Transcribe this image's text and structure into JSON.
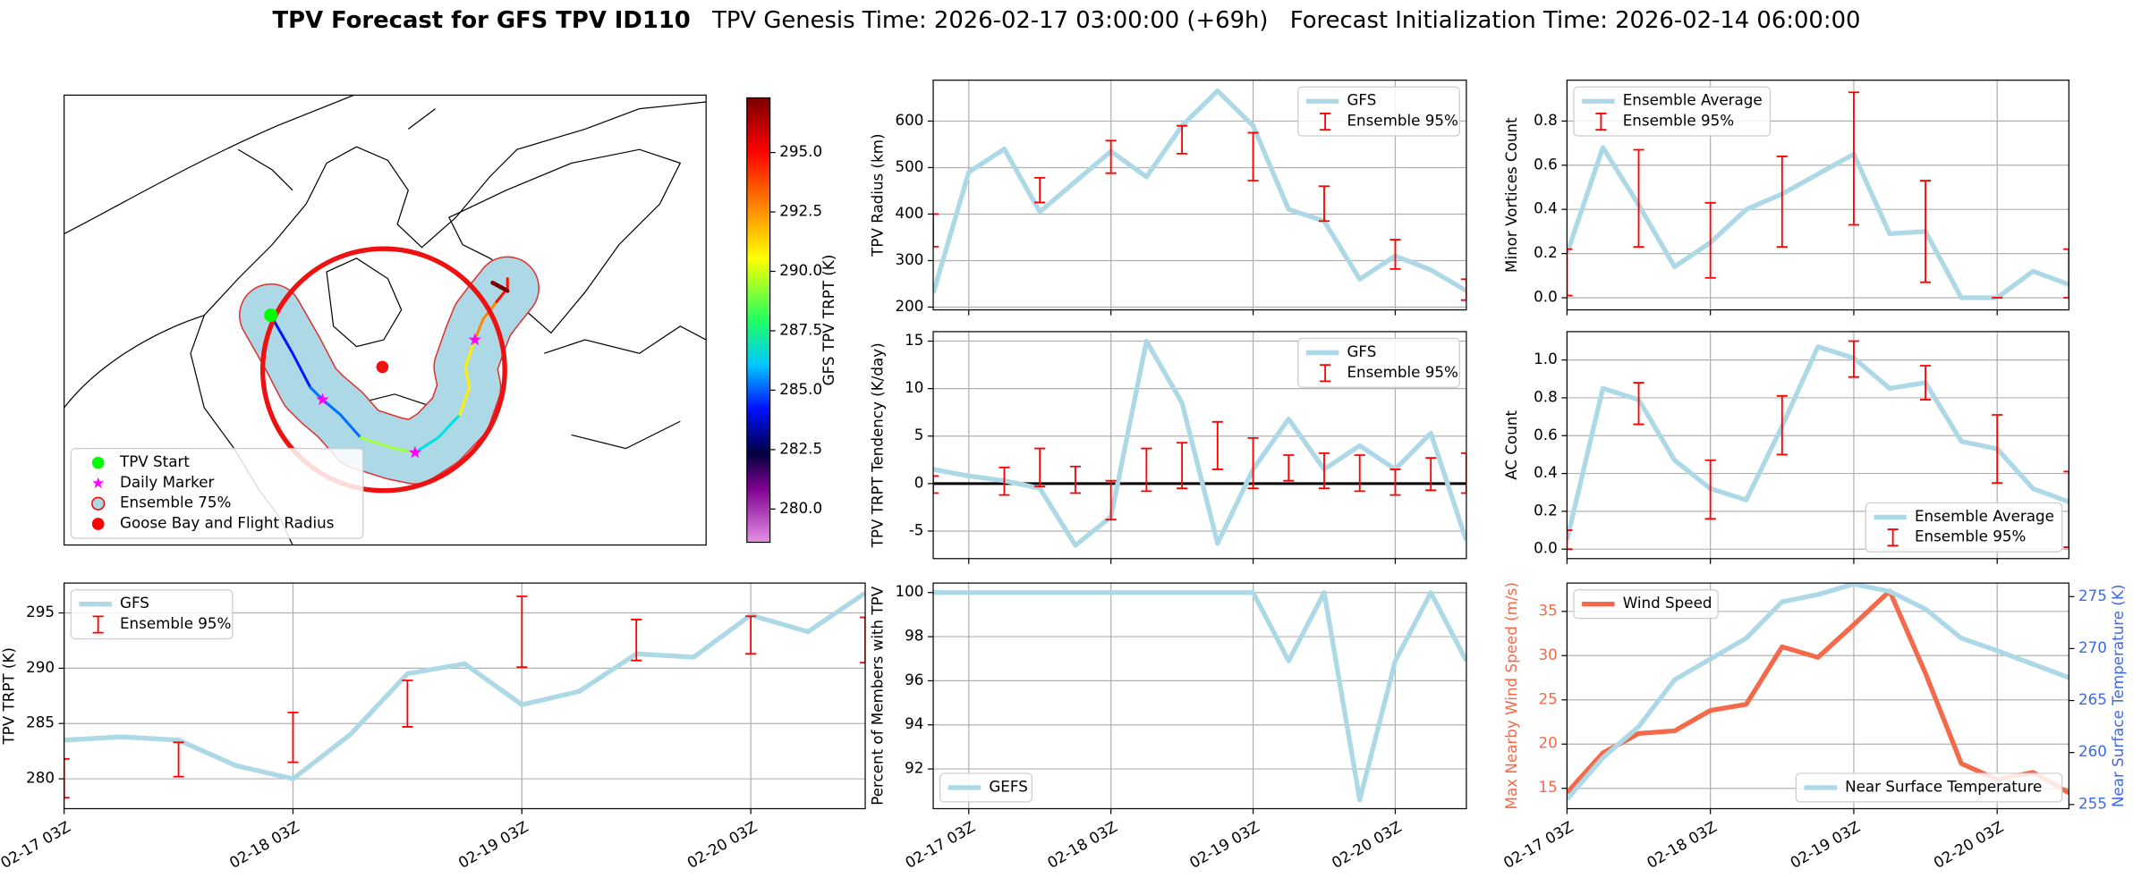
{
  "title": {
    "main": "TPV Forecast for GFS TPV ID110",
    "genesis": "TPV Genesis Time: 2026-02-17 03:00:00 (+69h)",
    "init": "Forecast Initialization Time: 2026-02-14 06:00:00"
  },
  "chart_data": [
    {
      "type": "map",
      "legend": "lower left",
      "legend_entries": [
        {
          "name": "TPV Start",
          "color": "#00ff00",
          "marker": "circle"
        },
        {
          "name": "Daily Marker",
          "color": "#ff00ff",
          "marker": "star"
        },
        {
          "name": "Ensemble 75%",
          "color": "#add8e6",
          "marker": "circle",
          "edgecolor": "#ff0000"
        },
        {
          "name": "Goose Bay and Flight Radius",
          "color": "#ff0000",
          "marker": "circle"
        }
      ],
      "colorbar": {
        "label": "GFS TPV TRPT (K)",
        "lim": [
          278.6,
          297.3
        ],
        "ticks": [
          {
            "value": 280,
            "label": "280.0"
          },
          {
            "value": 282.5,
            "label": "282.5"
          },
          {
            "value": 285,
            "label": "285.0"
          },
          {
            "value": 287.5,
            "label": "287.5"
          },
          {
            "value": 290,
            "label": "290.0"
          },
          {
            "value": 292.5,
            "label": "292.5"
          },
          {
            "value": 295,
            "label": "295.0"
          }
        ]
      }
    },
    {
      "type": "line",
      "ylabel": "TPV TRPT (K)",
      "grid": true,
      "legend": "upper left",
      "x": [
        "02-17 03Z",
        "02-17 09Z",
        "02-17 15Z",
        "02-17 21Z",
        "02-18 03Z",
        "02-18 09Z",
        "02-18 15Z",
        "02-18 21Z",
        "02-19 03Z",
        "02-19 09Z",
        "02-19 15Z",
        "02-19 21Z",
        "02-20 03Z",
        "02-20 09Z",
        "02-20 15Z"
      ],
      "xlim": [
        "02-17 03Z",
        "02-20 15Z"
      ],
      "xticks": [
        "02-17 03Z",
        "02-18 03Z",
        "02-19 03Z",
        "02-20 03Z"
      ],
      "ylim": [
        277.3,
        297.7
      ],
      "yticks": [
        280,
        285,
        290,
        295
      ],
      "series": [
        {
          "name": "GFS",
          "color": "#add8e6",
          "values": [
            283.5,
            283.8,
            283.5,
            281.2,
            280.0,
            284.0,
            289.5,
            290.4,
            286.7,
            287.9,
            291.3,
            291.0,
            294.8,
            293.3,
            296.8
          ]
        },
        {
          "name": "Ensemble 95%",
          "style": "errorbar",
          "color": "#ff0000",
          "x": [
            "02-17 03Z",
            "02-17 15Z",
            "02-18 03Z",
            "02-18 15Z",
            "02-19 03Z",
            "02-19 15Z",
            "02-20 03Z",
            "02-20 15Z"
          ],
          "low": [
            278.3,
            280.2,
            281.5,
            284.7,
            290.1,
            290.7,
            291.3,
            290.5
          ],
          "high": [
            281.8,
            283.3,
            286.0,
            288.9,
            296.5,
            294.4,
            294.7,
            294.6
          ]
        }
      ]
    },
    {
      "type": "line",
      "ylabel": "TPV Radius (km)",
      "grid": true,
      "legend": "upper right",
      "xticklabels": false,
      "x": [
        "02-16 21Z",
        "02-17 03Z",
        "02-17 09Z",
        "02-17 15Z",
        "02-17 21Z",
        "02-18 03Z",
        "02-18 09Z",
        "02-18 15Z",
        "02-18 21Z",
        "02-19 03Z",
        "02-19 09Z",
        "02-19 15Z",
        "02-19 21Z",
        "02-20 03Z",
        "02-20 09Z",
        "02-20 15Z"
      ],
      "xlim": [
        "02-16 21Z",
        "02-20 15Z"
      ],
      "xticks": [
        "02-17 03Z",
        "02-18 03Z",
        "02-19 03Z",
        "02-20 03Z"
      ],
      "ylim": [
        194,
        688
      ],
      "yticks": [
        200,
        300,
        400,
        500,
        600
      ],
      "series": [
        {
          "name": "GFS",
          "color": "#add8e6",
          "values": [
            230,
            490,
            540,
            405,
            470,
            535,
            480,
            590,
            665,
            590,
            410,
            385,
            260,
            310,
            280,
            235
          ]
        },
        {
          "name": "Ensemble 95%",
          "style": "errorbar",
          "color": "#ff0000",
          "x": [
            "02-16 21Z",
            "02-17 15Z",
            "02-18 03Z",
            "02-18 15Z",
            "02-19 03Z",
            "02-19 15Z",
            "02-20 03Z",
            "02-20 15Z"
          ],
          "low": [
            330,
            425,
            488,
            530,
            472,
            385,
            282,
            215
          ],
          "high": [
            400,
            478,
            558,
            590,
            575,
            460,
            345,
            260
          ]
        }
      ]
    },
    {
      "type": "line",
      "ylabel": "TPV TRPT Tendency (K/day)",
      "grid": true,
      "legend": "upper right",
      "xticklabels": false,
      "hline": 0,
      "x": [
        "02-16 21Z",
        "02-17 03Z",
        "02-17 09Z",
        "02-17 15Z",
        "02-17 21Z",
        "02-18 03Z",
        "02-18 09Z",
        "02-18 15Z",
        "02-18 21Z",
        "02-19 03Z",
        "02-19 09Z",
        "02-19 15Z",
        "02-19 21Z",
        "02-20 03Z",
        "02-20 09Z",
        "02-20 15Z"
      ],
      "xlim": [
        "02-16 21Z",
        "02-20 15Z"
      ],
      "xticks": [
        "02-17 03Z",
        "02-18 03Z",
        "02-19 03Z",
        "02-20 03Z"
      ],
      "ylim": [
        -7.9,
        16
      ],
      "yticks": [
        -5,
        0,
        5,
        10,
        15
      ],
      "series": [
        {
          "name": "GFS",
          "color": "#add8e6",
          "values": [
            1.5,
            0.8,
            0.3,
            -0.5,
            -6.5,
            -3.5,
            15.0,
            8.5,
            -6.3,
            1.5,
            6.8,
            1.5,
            4.0,
            1.5,
            5.3,
            -6.0
          ]
        },
        {
          "name": "Ensemble 95%",
          "style": "errorbar",
          "color": "#ff0000",
          "x": [
            "02-16 21Z",
            "02-17 09Z",
            "02-17 15Z",
            "02-17 21Z",
            "02-18 03Z",
            "02-18 09Z",
            "02-18 15Z",
            "02-18 21Z",
            "02-19 03Z",
            "02-19 09Z",
            "02-19 15Z",
            "02-19 21Z",
            "02-20 03Z",
            "02-20 09Z",
            "02-20 15Z"
          ],
          "low": [
            -1.0,
            -1.2,
            -0.3,
            -1.0,
            -3.8,
            -0.8,
            -0.5,
            1.5,
            -0.5,
            0.3,
            -0.5,
            -0.8,
            -1.2,
            -0.7,
            -1.0
          ],
          "high": [
            0.8,
            1.7,
            3.7,
            1.8,
            0.3,
            3.7,
            4.3,
            6.5,
            4.8,
            3.0,
            3.2,
            3.0,
            1.5,
            2.7,
            3.2
          ]
        }
      ]
    },
    {
      "type": "line",
      "ylabel": "Percent of Members with TPV",
      "grid": true,
      "legend": "lower left",
      "x": [
        "02-16 21Z",
        "02-17 03Z",
        "02-17 09Z",
        "02-17 15Z",
        "02-17 21Z",
        "02-18 03Z",
        "02-18 09Z",
        "02-18 15Z",
        "02-18 21Z",
        "02-19 03Z",
        "02-19 09Z",
        "02-19 15Z",
        "02-19 21Z",
        "02-20 03Z",
        "02-20 09Z",
        "02-20 15Z"
      ],
      "xlim": [
        "02-16 21Z",
        "02-20 15Z"
      ],
      "xticks": [
        "02-17 03Z",
        "02-18 03Z",
        "02-19 03Z",
        "02-20 03Z"
      ],
      "ylim": [
        90.2,
        100.43
      ],
      "yticks": [
        92,
        94,
        96,
        98,
        100
      ],
      "series": [
        {
          "name": "GEFS",
          "color": "#add8e6",
          "values": [
            100,
            100,
            100,
            100,
            100,
            100,
            100,
            100,
            100,
            100,
            96.9,
            100,
            90.6,
            96.9,
            100,
            96.9
          ]
        }
      ]
    },
    {
      "type": "line",
      "ylabel": "Minor Vortices Count",
      "grid": true,
      "legend": "upper left",
      "xticklabels": false,
      "x": [
        "02-17 03Z",
        "02-17 09Z",
        "02-17 15Z",
        "02-17 21Z",
        "02-18 03Z",
        "02-18 09Z",
        "02-18 15Z",
        "02-18 21Z",
        "02-19 03Z",
        "02-19 09Z",
        "02-19 15Z",
        "02-19 21Z",
        "02-20 03Z",
        "02-20 09Z",
        "02-20 15Z"
      ],
      "xlim": [
        "02-17 03Z",
        "02-20 15Z"
      ],
      "xticks": [
        "02-17 03Z",
        "02-18 03Z",
        "02-19 03Z",
        "02-20 03Z"
      ],
      "ylim": [
        -0.055,
        0.985
      ],
      "yticks": [
        {
          "value": 0,
          "label": "0.0"
        },
        0.2,
        0.4,
        0.6,
        0.8
      ],
      "series": [
        {
          "name": "Ensemble Average",
          "color": "#add8e6",
          "values": [
            0.2,
            0.68,
            0.42,
            0.14,
            0.25,
            0.4,
            0.47,
            0.56,
            0.65,
            0.29,
            0.3,
            0.0,
            0.0,
            0.12,
            0.06
          ]
        },
        {
          "name": "Ensemble 95%",
          "style": "errorbar",
          "color": "#ff0000",
          "x": [
            "02-17 03Z",
            "02-17 15Z",
            "02-18 03Z",
            "02-18 15Z",
            "02-19 03Z",
            "02-19 15Z",
            "02-20 03Z",
            "02-20 15Z"
          ],
          "low": [
            0.01,
            0.23,
            0.09,
            0.23,
            0.33,
            0.07,
            0.0,
            0.0
          ],
          "high": [
            0.22,
            0.67,
            0.43,
            0.64,
            0.93,
            0.53,
            0.0,
            0.22
          ]
        }
      ]
    },
    {
      "type": "line",
      "ylabel": "AC Count",
      "grid": true,
      "legend": "lower right",
      "xticklabels": false,
      "x": [
        "02-17 03Z",
        "02-17 09Z",
        "02-17 15Z",
        "02-17 21Z",
        "02-18 03Z",
        "02-18 09Z",
        "02-18 15Z",
        "02-18 21Z",
        "02-19 03Z",
        "02-19 09Z",
        "02-19 15Z",
        "02-19 21Z",
        "02-20 03Z",
        "02-20 09Z",
        "02-20 15Z"
      ],
      "xlim": [
        "02-17 03Z",
        "02-20 15Z"
      ],
      "xticks": [
        "02-17 03Z",
        "02-18 03Z",
        "02-19 03Z",
        "02-20 03Z"
      ],
      "ylim": [
        -0.05,
        1.15
      ],
      "yticks": [
        {
          "value": 0,
          "label": "0.0"
        },
        0.2,
        0.4,
        0.6,
        0.8,
        {
          "value": 1,
          "label": "1.0"
        }
      ],
      "series": [
        {
          "name": "Ensemble Average",
          "color": "#add8e6",
          "values": [
            0.05,
            0.85,
            0.79,
            0.47,
            0.32,
            0.26,
            0.65,
            1.07,
            1.01,
            0.85,
            0.88,
            0.57,
            0.53,
            0.32,
            0.25
          ]
        },
        {
          "name": "Ensemble 95%",
          "style": "errorbar",
          "color": "#ff0000",
          "x": [
            "02-17 03Z",
            "02-17 15Z",
            "02-18 03Z",
            "02-18 15Z",
            "02-19 03Z",
            "02-19 15Z",
            "02-20 03Z",
            "02-20 15Z"
          ],
          "low": [
            0.0,
            0.66,
            0.16,
            0.5,
            0.91,
            0.79,
            0.35,
            0.01
          ],
          "high": [
            0.1,
            0.88,
            0.47,
            0.81,
            1.1,
            0.97,
            0.71,
            0.41
          ]
        }
      ]
    },
    {
      "type": "line",
      "ylabel": "Max Nearby Wind Speed (m/s)",
      "ylabel_color": "#f4694a",
      "y2label": "Near Surface Temperature (K)",
      "y2label_color": "#4169e1",
      "grid": true,
      "x": [
        "02-17 03Z",
        "02-17 09Z",
        "02-17 15Z",
        "02-17 21Z",
        "02-18 03Z",
        "02-18 09Z",
        "02-18 15Z",
        "02-18 21Z",
        "02-19 03Z",
        "02-19 09Z",
        "02-19 15Z",
        "02-19 21Z",
        "02-20 03Z",
        "02-20 09Z",
        "02-20 15Z"
      ],
      "xlim": [
        "02-17 03Z",
        "02-20 15Z"
      ],
      "xticks": [
        "02-17 03Z",
        "02-18 03Z",
        "02-19 03Z",
        "02-20 03Z"
      ],
      "ylim": [
        12.7,
        38.2
      ],
      "yticks": [
        15,
        20,
        25,
        30,
        35
      ],
      "y2lim": [
        254.6,
        276.3
      ],
      "y2ticks": [
        255,
        260,
        265,
        270,
        275
      ],
      "series": [
        {
          "name": "Wind Speed",
          "color": "#f4694a",
          "legend": "upper left",
          "values": [
            14.5,
            19.0,
            21.2,
            21.5,
            23.8,
            24.5,
            31.0,
            29.8,
            33.5,
            37.3,
            28.0,
            17.8,
            16.0,
            16.8,
            14.5
          ]
        },
        {
          "name": "Near Surface Temperature",
          "color": "#add8e6",
          "axis": "y2",
          "legend": "lower right",
          "values": [
            255.5,
            259.5,
            262.5,
            267.0,
            269.0,
            271.0,
            274.5,
            275.2,
            276.2,
            275.5,
            273.8,
            271.0,
            269.8,
            268.5,
            267.2
          ]
        }
      ]
    }
  ]
}
